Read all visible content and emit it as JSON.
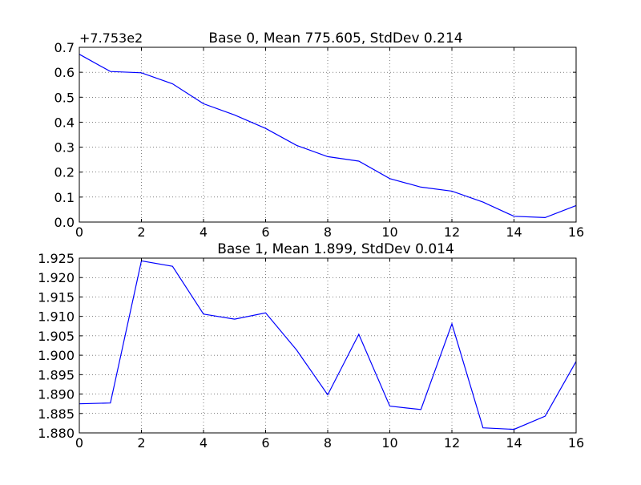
{
  "chart_data": [
    {
      "type": "line",
      "title": "Base 0, Mean 775.605, StdDev 0.214",
      "offset_label": "+7.753e2",
      "xlabel": "",
      "ylabel": "",
      "xlim": [
        0,
        16
      ],
      "ylim": [
        0.0,
        0.7
      ],
      "x_ticks": [
        "0",
        "2",
        "4",
        "6",
        "8",
        "10",
        "12",
        "14",
        "16"
      ],
      "y_ticks": [
        "0.0",
        "0.1",
        "0.2",
        "0.3",
        "0.4",
        "0.5",
        "0.6",
        "0.7"
      ],
      "grid": true,
      "line_color": "#0000ff",
      "x": [
        0,
        1,
        2,
        3,
        4,
        5,
        6,
        7,
        8,
        9,
        10,
        11,
        12,
        13,
        14,
        15,
        16
      ],
      "values": [
        0.672,
        0.603,
        0.598,
        0.554,
        0.474,
        0.429,
        0.375,
        0.307,
        0.262,
        0.244,
        0.174,
        0.14,
        0.124,
        0.08,
        0.023,
        0.018,
        0.066
      ]
    },
    {
      "type": "line",
      "title": "Base 1, Mean 1.899, StdDev 0.014",
      "xlabel": "",
      "ylabel": "",
      "xlim": [
        0,
        16
      ],
      "ylim": [
        1.88,
        1.925
      ],
      "x_ticks": [
        "0",
        "2",
        "4",
        "6",
        "8",
        "10",
        "12",
        "14",
        "16"
      ],
      "y_ticks": [
        "1.880",
        "1.885",
        "1.890",
        "1.895",
        "1.900",
        "1.905",
        "1.910",
        "1.915",
        "1.920",
        "1.925"
      ],
      "grid": true,
      "line_color": "#0000ff",
      "x": [
        0,
        1,
        2,
        3,
        4,
        5,
        6,
        7,
        8,
        9,
        10,
        11,
        12,
        13,
        14,
        15,
        16
      ],
      "values": [
        1.8875,
        1.8877,
        1.9243,
        1.9229,
        1.9106,
        1.9093,
        1.9109,
        1.9013,
        1.8898,
        1.9054,
        1.8869,
        1.886,
        1.9081,
        1.8813,
        1.8809,
        1.8843,
        1.8984
      ]
    }
  ]
}
